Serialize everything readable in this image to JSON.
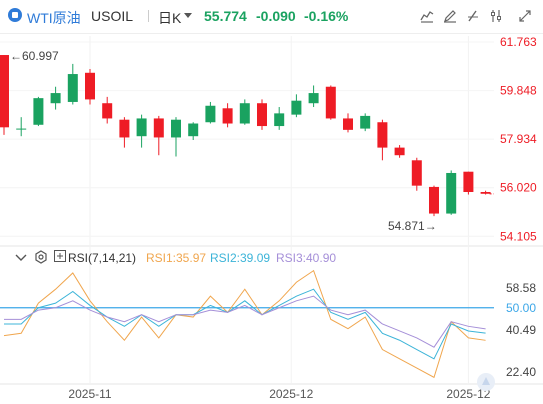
{
  "header": {
    "name": "WTI原油",
    "symbol": "USOIL",
    "period": "日K",
    "price": "55.774",
    "change": "-0.090",
    "change_pct": "-0.16%",
    "colors": {
      "up": "#1aa260",
      "down": "#ee1c25",
      "accent": "#2f7bd8"
    }
  },
  "toolbar": {
    "icons": [
      "indicator-icon",
      "edit-icon",
      "draw-icon",
      "settings-icon",
      "fullscreen-icon"
    ]
  },
  "chart_data": [
    {
      "type": "candlestick",
      "title": "",
      "y_tick_labels": [
        "61.763",
        "59.848",
        "57.934",
        "56.020",
        "54.105"
      ],
      "ylim": [
        53.8,
        62.0
      ],
      "x_tick_labels": [
        "2025-11",
        "2025-12",
        "2025-12"
      ],
      "max_annotation": "60.997",
      "min_annotation": "54.871",
      "current_price_label": "55.774",
      "candles": [
        {
          "o": 61.25,
          "h": 61.25,
          "l": 58.1,
          "c": 58.4
        },
        {
          "o": 58.35,
          "h": 58.8,
          "l": 58.05,
          "c": 58.35
        },
        {
          "o": 58.5,
          "h": 59.6,
          "l": 58.45,
          "c": 59.55
        },
        {
          "o": 59.35,
          "h": 60.0,
          "l": 59.1,
          "c": 59.75
        },
        {
          "o": 59.4,
          "h": 60.9,
          "l": 59.3,
          "c": 60.5
        },
        {
          "o": 60.55,
          "h": 60.7,
          "l": 59.3,
          "c": 59.5
        },
        {
          "o": 59.35,
          "h": 59.6,
          "l": 58.55,
          "c": 58.75
        },
        {
          "o": 58.7,
          "h": 58.8,
          "l": 57.6,
          "c": 58.0
        },
        {
          "o": 58.05,
          "h": 58.9,
          "l": 57.6,
          "c": 58.75
        },
        {
          "o": 58.75,
          "h": 58.85,
          "l": 57.3,
          "c": 58.0
        },
        {
          "o": 58.0,
          "h": 58.8,
          "l": 57.25,
          "c": 58.7
        },
        {
          "o": 58.05,
          "h": 58.6,
          "l": 57.9,
          "c": 58.55
        },
        {
          "o": 58.6,
          "h": 59.4,
          "l": 58.55,
          "c": 59.25
        },
        {
          "o": 59.15,
          "h": 59.35,
          "l": 58.4,
          "c": 58.55
        },
        {
          "o": 58.55,
          "h": 59.5,
          "l": 58.5,
          "c": 59.35
        },
        {
          "o": 59.35,
          "h": 59.5,
          "l": 58.3,
          "c": 58.45
        },
        {
          "o": 58.45,
          "h": 59.2,
          "l": 58.3,
          "c": 58.95
        },
        {
          "o": 58.9,
          "h": 59.7,
          "l": 58.8,
          "c": 59.45
        },
        {
          "o": 59.35,
          "h": 60.05,
          "l": 59.2,
          "c": 59.75
        },
        {
          "o": 60.0,
          "h": 60.05,
          "l": 58.7,
          "c": 58.75
        },
        {
          "o": 58.75,
          "h": 58.95,
          "l": 58.2,
          "c": 58.3
        },
        {
          "o": 58.35,
          "h": 58.95,
          "l": 58.25,
          "c": 58.85
        },
        {
          "o": 58.6,
          "h": 58.7,
          "l": 57.1,
          "c": 57.6
        },
        {
          "o": 57.6,
          "h": 57.7,
          "l": 57.2,
          "c": 57.3
        },
        {
          "o": 57.1,
          "h": 57.2,
          "l": 55.9,
          "c": 56.1
        },
        {
          "o": 56.05,
          "h": 56.1,
          "l": 54.9,
          "c": 55.0
        },
        {
          "o": 55.0,
          "h": 56.7,
          "l": 54.95,
          "c": 56.6
        },
        {
          "o": 56.65,
          "h": 56.65,
          "l": 55.75,
          "c": 55.85
        },
        {
          "o": 55.85,
          "h": 55.9,
          "l": 55.75,
          "c": 55.78
        }
      ]
    },
    {
      "type": "line",
      "title": "RSI(7,14,21)",
      "y_tick_labels": [
        "58.58",
        "50.00",
        "40.49",
        "22.40"
      ],
      "ylim": [
        18,
        68
      ],
      "reference_line": 50.0,
      "series": [
        {
          "name": "RSI1:35.97",
          "values": [
            38,
            39,
            52,
            58,
            65,
            53,
            44,
            36,
            46,
            37,
            47,
            46,
            55,
            48,
            58,
            47,
            53,
            61,
            66,
            45,
            41,
            46,
            32,
            28,
            24,
            20,
            44,
            37,
            35.97
          ]
        },
        {
          "name": "RSI2:39.09",
          "values": [
            43,
            43,
            50,
            52,
            57,
            51,
            46,
            42,
            47,
            42,
            47,
            47,
            51,
            48,
            53,
            47,
            51,
            55,
            58,
            48,
            45,
            48,
            39,
            36,
            32,
            28,
            43,
            40,
            39.09
          ]
        },
        {
          "name": "RSI3:40.90",
          "values": [
            45,
            45,
            49,
            50,
            53,
            49,
            46,
            44,
            47,
            44,
            47,
            47,
            49,
            48,
            51,
            47,
            50,
            53,
            55,
            49,
            47,
            49,
            43,
            40,
            37,
            33,
            44,
            42,
            40.9
          ]
        }
      ]
    }
  ],
  "indicator": {
    "main": "RSI(7,14,21)",
    "rsi1": "RSI1:35.97",
    "rsi2": "RSI2:39.09",
    "rsi3": "RSI3:40.90",
    "colors": {
      "rsi1": "#f0a64e",
      "rsi2": "#3cb4d8",
      "rsi3": "#a58fd8",
      "ref": "#3ca7e8"
    }
  }
}
